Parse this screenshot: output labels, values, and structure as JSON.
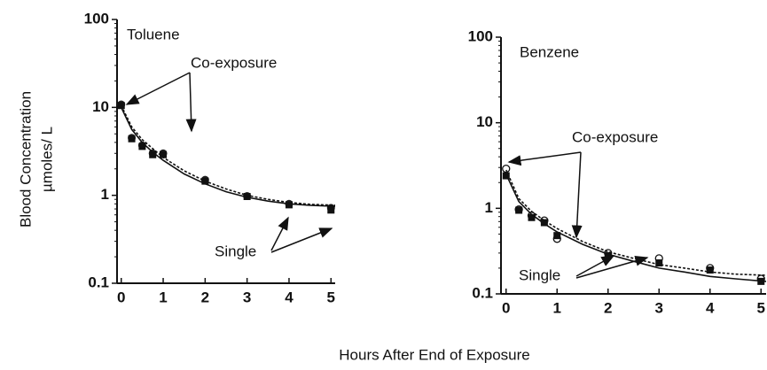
{
  "chart_data": [
    {
      "type": "line",
      "title": "Toluene",
      "annotations": [
        "Co-exposure",
        "Single"
      ],
      "xlim": [
        -0.1,
        5.1
      ],
      "xticks": [
        0,
        1,
        2,
        3,
        4,
        5
      ],
      "ylim": [
        0.1,
        100
      ],
      "yticks": [
        0.1,
        1,
        10,
        100
      ],
      "log_y": true,
      "series": [
        {
          "marker": "circle",
          "color": "#222222",
          "x": [
            0,
            0.25,
            0.5,
            0.75,
            1,
            2,
            3,
            4,
            5
          ],
          "values": [
            10.8,
            4.5,
            3.7,
            3.0,
            3.0,
            1.5,
            0.98,
            0.8,
            0.72
          ]
        },
        {
          "marker": "square",
          "color": "#111111",
          "x": [
            0,
            0.25,
            0.5,
            0.75,
            1,
            2,
            3,
            4,
            5
          ],
          "values": [
            10.5,
            4.4,
            3.6,
            2.9,
            2.9,
            1.45,
            0.97,
            0.78,
            0.68
          ]
        },
        {
          "line": "solid",
          "color": "#111111",
          "x": [
            0,
            0.25,
            0.5,
            0.75,
            1,
            1.5,
            2,
            2.5,
            3,
            3.5,
            4,
            4.5,
            5.1
          ],
          "values": [
            10,
            5.6,
            4.0,
            3.1,
            2.5,
            1.75,
            1.35,
            1.1,
            0.95,
            0.86,
            0.8,
            0.77,
            0.75
          ]
        },
        {
          "line": "dotted",
          "color": "#111111",
          "x": [
            0,
            0.25,
            0.5,
            0.75,
            1,
            1.5,
            2,
            2.5,
            3,
            3.5,
            4,
            4.5,
            5.1
          ],
          "values": [
            10.5,
            6.0,
            4.3,
            3.4,
            2.7,
            1.9,
            1.45,
            1.18,
            1.0,
            0.9,
            0.83,
            0.79,
            0.77
          ]
        }
      ]
    },
    {
      "type": "line",
      "title": "Benzene",
      "annotations": [
        "Co-exposure",
        "Single"
      ],
      "xlim": [
        -0.1,
        5.1
      ],
      "xticks": [
        0,
        1,
        2,
        3,
        4,
        5
      ],
      "ylim": [
        0.1,
        100
      ],
      "yticks": [
        0.1,
        1,
        10,
        100
      ],
      "log_y": true,
      "series": [
        {
          "marker": "open-circle",
          "color": "#111111",
          "x": [
            0,
            0.25,
            0.5,
            0.75,
            1,
            2,
            3,
            4,
            5
          ],
          "values": [
            2.9,
            0.97,
            0.82,
            0.72,
            0.44,
            0.3,
            0.26,
            0.2,
            0.15
          ]
        },
        {
          "marker": "square",
          "color": "#111111",
          "x": [
            0,
            0.25,
            0.5,
            0.75,
            1,
            2,
            3,
            4,
            5
          ],
          "values": [
            2.4,
            0.95,
            0.78,
            0.68,
            0.48,
            0.28,
            0.23,
            0.19,
            0.14
          ]
        },
        {
          "line": "solid",
          "color": "#111111",
          "x": [
            0,
            0.25,
            0.5,
            0.75,
            1,
            1.5,
            2,
            2.5,
            3,
            3.5,
            4,
            4.5,
            5.1
          ],
          "values": [
            2.5,
            1.2,
            0.85,
            0.66,
            0.53,
            0.38,
            0.29,
            0.24,
            0.2,
            0.18,
            0.16,
            0.15,
            0.14
          ]
        },
        {
          "line": "dotted",
          "color": "#111111",
          "x": [
            0,
            0.25,
            0.5,
            0.75,
            1,
            1.5,
            2,
            2.5,
            3,
            3.5,
            4,
            4.5,
            5.1
          ],
          "values": [
            2.8,
            1.3,
            0.92,
            0.72,
            0.58,
            0.41,
            0.31,
            0.26,
            0.22,
            0.2,
            0.18,
            0.17,
            0.165
          ]
        }
      ]
    }
  ],
  "x_label": "Hours After End of Exposure",
  "y_label": [
    "Blood Concentration",
    "µmoles/ L"
  ]
}
